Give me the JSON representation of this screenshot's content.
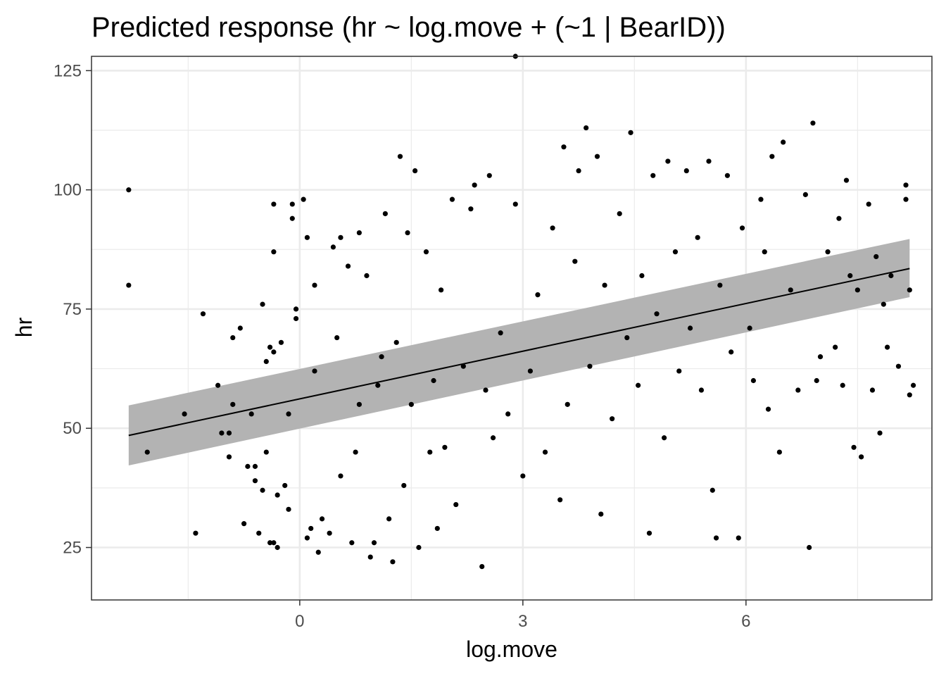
{
  "chart_data": {
    "type": "scatter",
    "title": "Predicted response (hr ~ log.move + (~1 | BearID))",
    "xlabel": "log.move",
    "ylabel": "hr",
    "xlim": [
      -2.8,
      8.5
    ],
    "ylim": [
      14,
      128
    ],
    "x_ticks": [
      0,
      3,
      6
    ],
    "x_minor": [
      -1.5,
      1.5,
      4.5,
      7.5
    ],
    "y_ticks": [
      25,
      50,
      75,
      100,
      125
    ],
    "y_minor": [
      37.5,
      62.5,
      87.5,
      112.5
    ],
    "x_tick_labels": [
      "0",
      "3",
      "6"
    ],
    "y_tick_labels": [
      "25",
      "50",
      "75",
      "100",
      "125"
    ],
    "grid": true,
    "legend": "none",
    "colors": {
      "points": "#000000",
      "ribbon": "#b3b3b3",
      "line": "#000000",
      "grid": "#ebebeb",
      "panel_border": "#333333"
    },
    "fit": {
      "x": [
        -2.3,
        8.2
      ],
      "y": [
        48.5,
        83.5
      ]
    },
    "ribbon": {
      "x": [
        -2.3,
        8.2
      ],
      "lower": [
        42.2,
        77.5
      ],
      "upper": [
        54.8,
        89.7
      ]
    },
    "series": [
      {
        "points": [
          [
            -2.3,
            100
          ],
          [
            -2.3,
            80
          ],
          [
            -2.05,
            45
          ],
          [
            -1.55,
            53
          ],
          [
            -1.4,
            28
          ],
          [
            -1.3,
            74
          ],
          [
            -1.1,
            59
          ],
          [
            -1.05,
            49
          ],
          [
            -0.95,
            44
          ],
          [
            -0.95,
            49
          ],
          [
            -0.9,
            55
          ],
          [
            -0.9,
            69
          ],
          [
            -0.8,
            71
          ],
          [
            -0.75,
            30
          ],
          [
            -0.7,
            42
          ],
          [
            -0.65,
            53
          ],
          [
            -0.6,
            42
          ],
          [
            -0.6,
            39
          ],
          [
            -0.55,
            28
          ],
          [
            -0.5,
            37
          ],
          [
            -0.5,
            76
          ],
          [
            -0.45,
            45
          ],
          [
            -0.45,
            64
          ],
          [
            -0.4,
            26
          ],
          [
            -0.4,
            67
          ],
          [
            -0.35,
            66
          ],
          [
            -0.3,
            36
          ],
          [
            -0.35,
            26
          ],
          [
            -0.35,
            97
          ],
          [
            -0.35,
            87
          ],
          [
            -0.3,
            25
          ],
          [
            -0.25,
            68
          ],
          [
            -0.2,
            38
          ],
          [
            -0.15,
            33
          ],
          [
            -0.15,
            53
          ],
          [
            -0.1,
            94
          ],
          [
            -0.1,
            97
          ],
          [
            -0.05,
            75
          ],
          [
            -0.05,
            73
          ],
          [
            0.05,
            98
          ],
          [
            0.1,
            90
          ],
          [
            0.1,
            27
          ],
          [
            0.15,
            29
          ],
          [
            0.2,
            80
          ],
          [
            0.2,
            62
          ],
          [
            0.25,
            24
          ],
          [
            0.3,
            31
          ],
          [
            0.4,
            28
          ],
          [
            0.45,
            88
          ],
          [
            0.5,
            69
          ],
          [
            0.55,
            40
          ],
          [
            0.55,
            90
          ],
          [
            0.65,
            84
          ],
          [
            0.7,
            26
          ],
          [
            0.75,
            45
          ],
          [
            0.8,
            91
          ],
          [
            0.8,
            55
          ],
          [
            0.9,
            82
          ],
          [
            0.95,
            23
          ],
          [
            1.0,
            26
          ],
          [
            1.05,
            59
          ],
          [
            1.1,
            65
          ],
          [
            1.15,
            95
          ],
          [
            1.2,
            31
          ],
          [
            1.25,
            22
          ],
          [
            1.3,
            68
          ],
          [
            1.35,
            107
          ],
          [
            1.4,
            38
          ],
          [
            1.45,
            91
          ],
          [
            1.5,
            55
          ],
          [
            1.55,
            104
          ],
          [
            1.6,
            25
          ],
          [
            1.7,
            87
          ],
          [
            1.75,
            45
          ],
          [
            1.8,
            60
          ],
          [
            1.85,
            29
          ],
          [
            1.9,
            79
          ],
          [
            1.95,
            46
          ],
          [
            2.05,
            98
          ],
          [
            2.1,
            34
          ],
          [
            2.2,
            63
          ],
          [
            2.3,
            96
          ],
          [
            2.35,
            101
          ],
          [
            2.45,
            21
          ],
          [
            2.5,
            58
          ],
          [
            2.55,
            103
          ],
          [
            2.6,
            48
          ],
          [
            2.7,
            70
          ],
          [
            2.8,
            53
          ],
          [
            2.9,
            97
          ],
          [
            2.9,
            128
          ],
          [
            3.0,
            40
          ],
          [
            3.1,
            62
          ],
          [
            3.2,
            78
          ],
          [
            3.3,
            45
          ],
          [
            3.4,
            92
          ],
          [
            3.5,
            35
          ],
          [
            3.55,
            109
          ],
          [
            3.6,
            55
          ],
          [
            3.7,
            85
          ],
          [
            3.75,
            104
          ],
          [
            3.85,
            113
          ],
          [
            3.9,
            63
          ],
          [
            4.0,
            107
          ],
          [
            4.05,
            32
          ],
          [
            4.1,
            80
          ],
          [
            4.2,
            52
          ],
          [
            4.3,
            95
          ],
          [
            4.4,
            69
          ],
          [
            4.45,
            112
          ],
          [
            4.55,
            59
          ],
          [
            4.6,
            82
          ],
          [
            4.7,
            28
          ],
          [
            4.75,
            103
          ],
          [
            4.8,
            74
          ],
          [
            4.9,
            48
          ],
          [
            4.95,
            106
          ],
          [
            5.05,
            87
          ],
          [
            5.1,
            62
          ],
          [
            5.2,
            104
          ],
          [
            5.25,
            71
          ],
          [
            5.35,
            90
          ],
          [
            5.4,
            58
          ],
          [
            5.5,
            106
          ],
          [
            5.55,
            37
          ],
          [
            5.6,
            27
          ],
          [
            5.65,
            80
          ],
          [
            5.75,
            103
          ],
          [
            5.8,
            66
          ],
          [
            5.9,
            27
          ],
          [
            5.95,
            92
          ],
          [
            6.05,
            71
          ],
          [
            6.1,
            60
          ],
          [
            6.2,
            98
          ],
          [
            6.25,
            87
          ],
          [
            6.3,
            54
          ],
          [
            6.35,
            107
          ],
          [
            6.45,
            45
          ],
          [
            6.5,
            110
          ],
          [
            6.6,
            79
          ],
          [
            6.7,
            58
          ],
          [
            6.8,
            99
          ],
          [
            6.85,
            25
          ],
          [
            6.9,
            114
          ],
          [
            7.0,
            65
          ],
          [
            7.1,
            87
          ],
          [
            7.2,
            67
          ],
          [
            7.25,
            94
          ],
          [
            7.3,
            59
          ],
          [
            7.35,
            102
          ],
          [
            7.45,
            46
          ],
          [
            7.5,
            79
          ],
          [
            7.55,
            44
          ],
          [
            7.65,
            97
          ],
          [
            7.7,
            58
          ],
          [
            7.75,
            86
          ],
          [
            7.8,
            49
          ],
          [
            7.85,
            76
          ],
          [
            7.9,
            67
          ],
          [
            8.05,
            63
          ],
          [
            8.15,
            101
          ],
          [
            8.2,
            57
          ],
          [
            8.25,
            59
          ],
          [
            8.2,
            79
          ],
          [
            8.15,
            98
          ],
          [
            7.95,
            82
          ],
          [
            7.4,
            82
          ],
          [
            6.95,
            60
          ]
        ]
      }
    ]
  }
}
